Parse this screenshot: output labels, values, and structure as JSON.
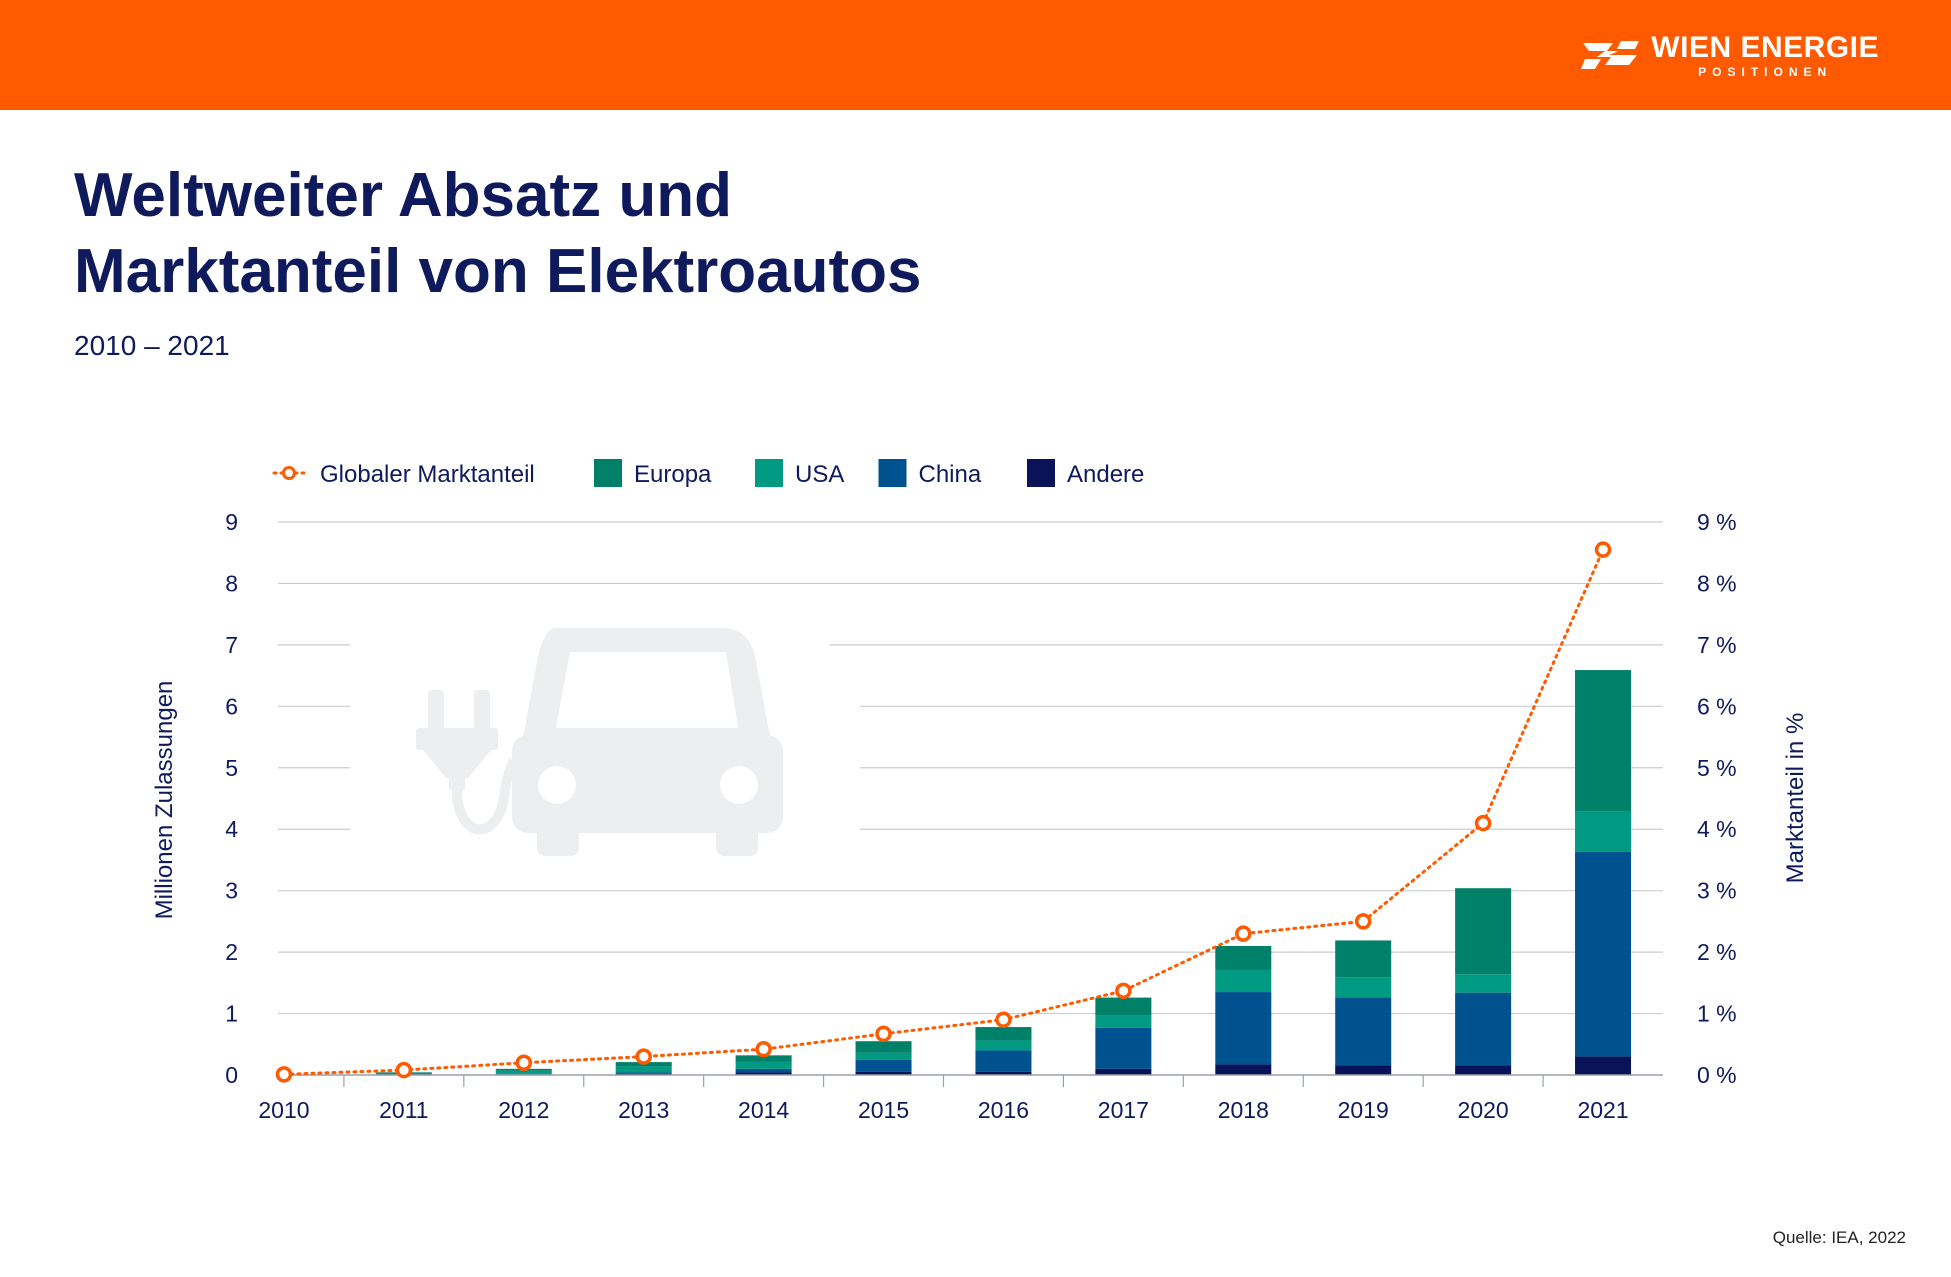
{
  "header": {
    "logo_name": "WIEN ENERGIE",
    "logo_sub": "POSITIONEN",
    "bar_color": "#ff5a00"
  },
  "title_line1": "Weltweiter Absatz und",
  "title_line2": "Marktanteil von Elektroautos",
  "subtitle": "2010 – 2021",
  "source": "Quelle: IEA, 2022",
  "icon": "electric-car-icon",
  "chart_data": {
    "type": "bar",
    "stacked": true,
    "categories": [
      "2010",
      "2011",
      "2012",
      "2013",
      "2014",
      "2015",
      "2016",
      "2017",
      "2018",
      "2019",
      "2020",
      "2021"
    ],
    "series": [
      {
        "name": "Andere",
        "color": "#0a1357",
        "values": [
          0,
          0.01,
          0.01,
          0.02,
          0.04,
          0.05,
          0.05,
          0.1,
          0.17,
          0.16,
          0.16,
          0.3
        ]
      },
      {
        "name": "China",
        "color": "#00528f",
        "values": [
          0,
          0.005,
          0.01,
          0.02,
          0.06,
          0.2,
          0.35,
          0.67,
          1.18,
          1.1,
          1.18,
          3.33
        ]
      },
      {
        "name": "USA",
        "color": "#009982",
        "values": [
          0,
          0.02,
          0.05,
          0.1,
          0.12,
          0.11,
          0.16,
          0.2,
          0.36,
          0.33,
          0.3,
          0.66
        ]
      },
      {
        "name": "Europa",
        "color": "#008068",
        "values": [
          0,
          0.01,
          0.03,
          0.07,
          0.1,
          0.19,
          0.22,
          0.29,
          0.39,
          0.6,
          1.4,
          2.3
        ]
      }
    ],
    "line_series": {
      "name": "Globaler Marktanteil",
      "color": "#ff5a00",
      "unit": "%",
      "values": [
        0.01,
        0.08,
        0.2,
        0.3,
        0.42,
        0.67,
        0.9,
        1.37,
        2.3,
        2.5,
        4.1,
        8.55
      ]
    },
    "legend_order": [
      "Globaler Marktanteil",
      "Europa",
      "USA",
      "China",
      "Andere"
    ],
    "ylabel": "Millionen Zulassungen",
    "ylim": [
      0,
      9
    ],
    "yticks": [
      "0",
      "1",
      "2",
      "3",
      "4",
      "5",
      "6",
      "7",
      "8",
      "9"
    ],
    "y2label": "Marktanteil in %",
    "y2lim": [
      0,
      9
    ],
    "y2ticks": [
      "0 %",
      "1 %",
      "2 %",
      "3 %",
      "4 %",
      "5 %",
      "6 %",
      "7 %",
      "8 %",
      "9 %"
    ],
    "grid": true,
    "legend_position": "top"
  }
}
